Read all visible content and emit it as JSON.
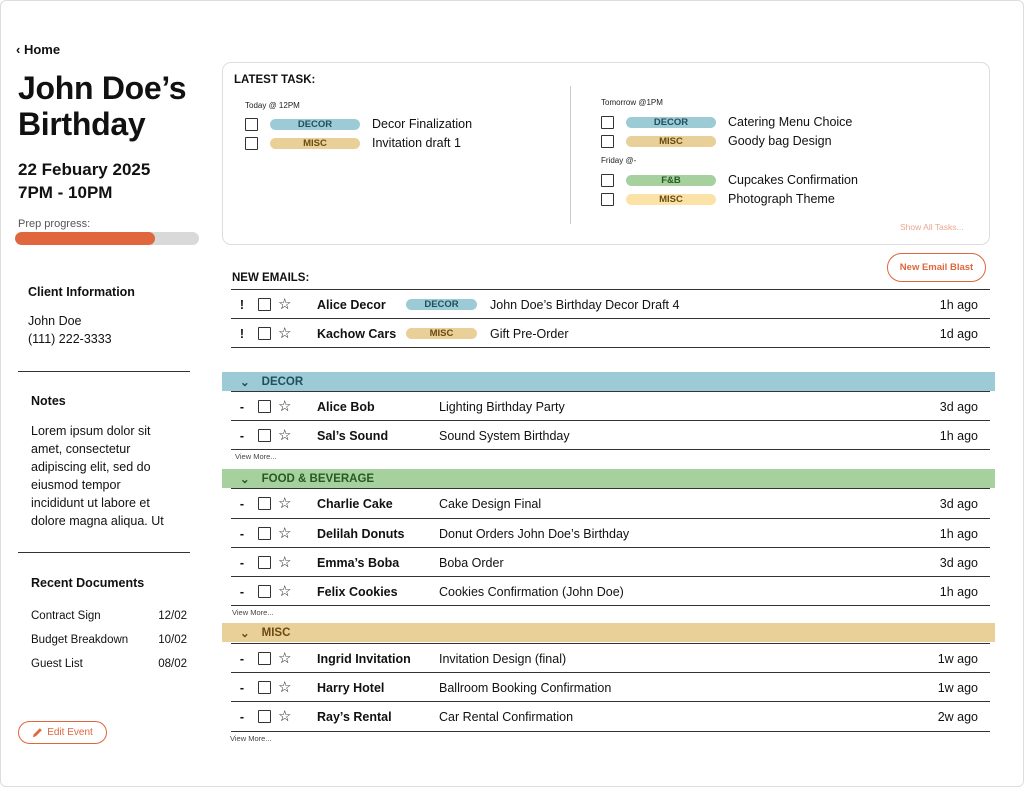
{
  "nav": {
    "home_label": "Home"
  },
  "event": {
    "title_line1": "John Doe’s",
    "title_line2": "Birthday",
    "date": "22 Febuary 2025",
    "time": "7PM - 10PM",
    "prep_label": "Prep progress:",
    "prep_progress_percent": 76
  },
  "client": {
    "heading": "Client Information",
    "name": "John Doe",
    "phone": "(111) 222-3333"
  },
  "notes": {
    "heading": "Notes",
    "text": "Lorem ipsum dolor sit amet, consectetur adipiscing elit, sed do eiusmod tempor incididunt ut labore et dolore magna aliqua. Ut"
  },
  "documents": {
    "heading": "Recent Documents",
    "items": [
      {
        "name": "Contract Sign",
        "date": "12/02"
      },
      {
        "name": "Budget Breakdown",
        "date": "10/02"
      },
      {
        "name": "Guest List",
        "date": "08/02"
      }
    ]
  },
  "edit_button": "Edit Event",
  "tasks": {
    "heading": "LATEST TASK:",
    "show_all": "Show All Tasks...",
    "groups": [
      {
        "label": "Today @ 12PM",
        "items": [
          {
            "tag": "DECOR",
            "text": "Decor Finalization"
          },
          {
            "tag": "MISC",
            "text": "Invitation draft 1"
          }
        ]
      },
      {
        "label": "Tomorrow @1PM",
        "items": [
          {
            "tag": "DECOR",
            "text": "Catering Menu Choice"
          },
          {
            "tag": "MISC",
            "text": "Goody bag Design"
          }
        ]
      },
      {
        "label": "Friday @-",
        "items": [
          {
            "tag": "F&B",
            "text": "Cupcakes Confirmation"
          },
          {
            "tag": "MISC",
            "text": "Photograph Theme"
          }
        ]
      }
    ]
  },
  "new_emails": {
    "heading": "NEW EMAILS:",
    "blast_button": "New Email Blast",
    "items": [
      {
        "mark": "!",
        "sender": "Alice Decor",
        "tag": "DECOR",
        "subject": "John Doe’s Birthday Decor Draft 4",
        "time": "1h ago"
      },
      {
        "mark": "!",
        "sender": "Kachow Cars",
        "tag": "MISC",
        "subject": "Gift Pre-Order",
        "time": "1d ago"
      }
    ]
  },
  "categories": [
    {
      "name": "DECOR",
      "view_more": "View More...",
      "items": [
        {
          "mark": "-",
          "sender": "Alice Bob",
          "subject": "Lighting Birthday Party",
          "time": "3d ago"
        },
        {
          "mark": "-",
          "sender": "Sal’s Sound",
          "subject": "Sound System Birthday",
          "time": "1h ago"
        }
      ]
    },
    {
      "name": "FOOD & BEVERAGE",
      "view_more": "View More...",
      "items": [
        {
          "mark": "-",
          "sender": "Charlie Cake",
          "subject": "Cake Design Final",
          "time": "3d ago"
        },
        {
          "mark": "-",
          "sender": "Delilah Donuts",
          "subject": "Donut Orders John Doe’s Birthday",
          "time": "1h ago"
        },
        {
          "mark": "-",
          "sender": "Emma’s Boba",
          "subject": "Boba Order",
          "time": "3d ago"
        },
        {
          "mark": "-",
          "sender": "Felix Cookies",
          "subject": "Cookies Confirmation (John Doe)",
          "time": "1h ago"
        }
      ]
    },
    {
      "name": "MISC",
      "view_more": "View More...",
      "items": [
        {
          "mark": "-",
          "sender": "Ingrid Invitation",
          "subject": "Invitation Design (final)",
          "time": "1w ago"
        },
        {
          "mark": "-",
          "sender": "Harry Hotel",
          "subject": "Ballroom Booking Confirmation",
          "time": "1w ago"
        },
        {
          "mark": "-",
          "sender": "Ray’s Rental",
          "subject": "Car Rental Confirmation",
          "time": "2w ago"
        }
      ]
    }
  ],
  "colors": {
    "accent": "#e0663e",
    "decor": "#9ccbd6",
    "misc": "#e9cf98",
    "fb": "#a6d19e"
  }
}
